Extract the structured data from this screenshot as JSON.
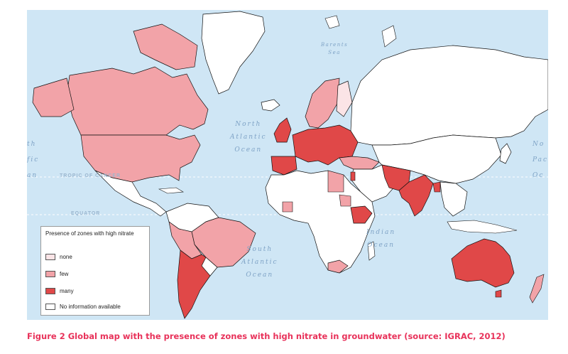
{
  "map": {
    "ocean_color": "#cfe6f5",
    "land_no_info_color": "#ffffff",
    "ocean_labels": [
      {
        "id": "north-atlantic",
        "lines": [
          "North",
          "Atlantic",
          "Ocean"
        ]
      },
      {
        "id": "south-atlantic",
        "lines": [
          "South",
          "Atlantic",
          "Ocean"
        ]
      },
      {
        "id": "indian",
        "lines": [
          "Indian",
          "Ocean"
        ]
      },
      {
        "id": "barents",
        "lines": [
          "Barents",
          "Sea"
        ]
      },
      {
        "id": "pacific-left",
        "lines": [
          "th",
          "fic",
          "an"
        ]
      },
      {
        "id": "pacific-right",
        "lines": [
          "No",
          "Pac",
          "Oc"
        ]
      }
    ],
    "reference_lines": {
      "tropic": "TROPIC OF CANCER",
      "equator": "EQUATOR"
    }
  },
  "legend": {
    "title": "Presence of zones with high nitrate",
    "items": [
      {
        "label": "none",
        "color": "#fbe4e6"
      },
      {
        "label": "few",
        "color": "#f2a3a8"
      },
      {
        "label": "many",
        "color": "#e04848"
      },
      {
        "label": "No information available",
        "color": "#ffffff"
      }
    ]
  },
  "caption": "Figure 2  Global map with the presence of zones with high nitrate in groundwater (source: IGRAC, 2012)"
}
